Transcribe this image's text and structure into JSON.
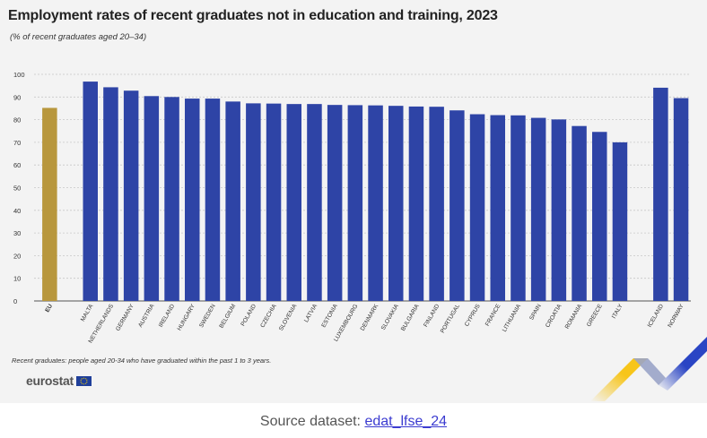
{
  "title": "Employment rates of recent graduates not in education and training, 2023",
  "subtitle": "(% of recent graduates aged 20–34)",
  "footnote": "Recent graduates: people aged 20-34 who have graduated within the past 1 to 3 years.",
  "logo_text": "eurostat",
  "source": {
    "prefix": "Source dataset: ",
    "link_text": "edat_lfse_24"
  },
  "colors": {
    "eu_bar": "#b8973d",
    "country_bar": "#2e44a6",
    "background": "#f3f3f3",
    "grid": "#c8c8c8"
  },
  "chart_data": {
    "type": "bar",
    "title": "Employment rates of recent graduates not in education and training, 2023",
    "subtitle": "(% of recent graduates aged 20–34)",
    "xlabel": "",
    "ylabel": "",
    "ylim": [
      0,
      100
    ],
    "yticks": [
      0,
      10,
      20,
      30,
      40,
      50,
      60,
      70,
      80,
      90,
      100
    ],
    "grid": true,
    "groups": [
      {
        "categories": [
          "EU"
        ],
        "values": [
          85.2
        ],
        "color": "#b8973d"
      },
      {
        "categories": [
          "MALTA",
          "NETHERLANDS",
          "GERMANY",
          "AUSTRIA",
          "IRELAND",
          "HUNGARY",
          "SWEDEN",
          "BELGIUM",
          "POLAND",
          "CZECHIA",
          "SLOVENIA",
          "LATVIA",
          "ESTONIA",
          "LUXEMBOURG",
          "DENMARK",
          "SLOVAKIA",
          "BULGARIA",
          "FINLAND",
          "PORTUGAL",
          "CYPRUS",
          "FRANCE",
          "LITHUANIA",
          "SPAIN",
          "CROATIA",
          "ROMANIA",
          "GREECE",
          "ITALY"
        ],
        "values": [
          96.8,
          94.3,
          92.8,
          90.4,
          90.0,
          89.3,
          89.3,
          88.0,
          87.2,
          87.1,
          86.9,
          86.9,
          86.5,
          86.4,
          86.3,
          86.1,
          85.8,
          85.7,
          84.1,
          82.4,
          82.0,
          81.9,
          80.8,
          80.1,
          77.2,
          74.6,
          70.0
        ],
        "color": "#2e44a6"
      },
      {
        "categories": [
          "ICELAND",
          "NORWAY"
        ],
        "values": [
          94.1,
          89.5
        ],
        "color": "#2e44a6"
      }
    ]
  }
}
